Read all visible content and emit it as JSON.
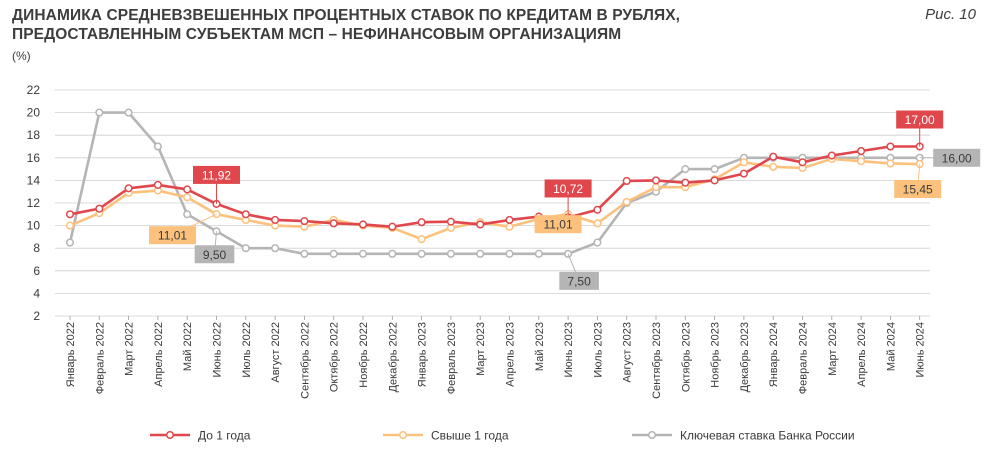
{
  "header": {
    "title_line1": "ДИНАМИКА СРЕДНЕВЗВЕШЕННЫХ ПРОЦЕНТНЫХ СТАВОК ПО КРЕДИТАМ В РУБЛЯХ,",
    "title_line2": "ПРЕДОСТАВЛЕННЫМ СУБЪЕКТАМ МСП – НЕФИНАНСОВЫМ ОРГАНИЗАЦИЯМ",
    "figure_label": "Рис. 10",
    "unit": "(%)"
  },
  "chart_data": {
    "type": "line",
    "title": "ДИНАМИКА СРЕДНЕВЗВЕШЕННЫХ ПРОЦЕНТНЫХ СТАВОК ПО КРЕДИТАМ В РУБЛЯХ, ПРЕДОСТАВЛЕННЫМ СУБЪЕКТАМ МСП – НЕФИНАНСОВЫМ ОРГАНИЗАЦИЯМ",
    "ylabel": "(%)",
    "ylim": [
      2,
      22
    ],
    "yticks": [
      2,
      4,
      6,
      8,
      10,
      12,
      14,
      16,
      18,
      20,
      22
    ],
    "grid": true,
    "legend_position": "bottom",
    "categories": [
      "Январь 2022",
      "Февраль 2022",
      "Март 2022",
      "Апрель 2022",
      "Май 2022",
      "Июнь 2022",
      "Июль 2022",
      "Август 2022",
      "Сентябрь 2022",
      "Октябрь 2022",
      "Ноябрь 2022",
      "Декабрь 2022",
      "Январь 2023",
      "Февраль 2023",
      "Март 2023",
      "Апрель 2023",
      "Май 2023",
      "Июнь 2023",
      "Июль 2023",
      "Август 2023",
      "Сентябрь 2023",
      "Октябрь 2023",
      "Ноябрь 2023",
      "Декабрь 2023",
      "Январь 2024",
      "Февраль 2024",
      "Март 2024",
      "Апрель 2024",
      "Май 2024",
      "Июнь 2024"
    ],
    "series": [
      {
        "name": "До 1 года",
        "color": "#e0474c",
        "values": [
          11.0,
          11.5,
          13.3,
          13.6,
          13.2,
          11.92,
          11.0,
          10.5,
          10.4,
          10.2,
          10.1,
          9.9,
          10.3,
          10.35,
          10.1,
          10.5,
          10.8,
          10.72,
          11.4,
          13.95,
          14.0,
          13.8,
          14.0,
          14.6,
          16.1,
          15.6,
          16.2,
          16.6,
          17.0,
          17.0
        ],
        "labels": [
          {
            "index": 5,
            "text": "11,92"
          },
          {
            "index": 17,
            "text": "10,72"
          },
          {
            "index": 29,
            "text": "17,00"
          }
        ]
      },
      {
        "name": "Свыше 1 года",
        "color": "#fcc17c",
        "values": [
          10.0,
          11.1,
          12.9,
          13.1,
          12.5,
          11.01,
          10.5,
          10.0,
          9.9,
          10.5,
          10.0,
          9.8,
          8.8,
          9.8,
          10.3,
          9.9,
          10.6,
          11.01,
          10.2,
          12.1,
          13.4,
          13.4,
          14.1,
          15.6,
          15.2,
          15.1,
          15.9,
          15.7,
          15.5,
          15.45
        ],
        "labels": [
          {
            "index": 5,
            "text": "11,01"
          },
          {
            "index": 17,
            "text": "11,01"
          },
          {
            "index": 29,
            "text": "15,45"
          }
        ]
      },
      {
        "name": "Ключевая ставка Банка России",
        "color": "#b5b5b5",
        "values": [
          8.5,
          20.0,
          20.0,
          17.0,
          11.0,
          9.5,
          8.0,
          8.0,
          7.5,
          7.5,
          7.5,
          7.5,
          7.5,
          7.5,
          7.5,
          7.5,
          7.5,
          7.5,
          8.5,
          12.0,
          13.0,
          15.0,
          15.0,
          16.0,
          16.0,
          16.0,
          16.0,
          16.0,
          16.0,
          16.0
        ],
        "labels": [
          {
            "index": 5,
            "text": "9,50"
          },
          {
            "index": 17,
            "text": "7,50"
          },
          {
            "index": 29,
            "text": "16,00"
          }
        ]
      }
    ]
  }
}
